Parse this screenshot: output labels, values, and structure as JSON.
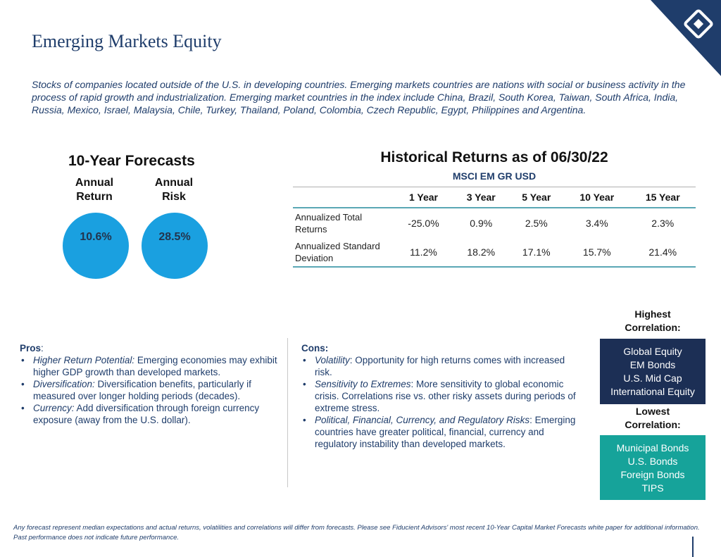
{
  "header": {
    "title": "Emerging Markets Equity",
    "intro": "Stocks of companies located outside of the U.S. in developing countries. Emerging markets countries are nations with social or business activity in the process of rapid growth and industrialization. Emerging market countries in the index include China, Brazil, South Korea, Taiwan, South Africa, India, Russia, Mexico, Israel, Malaysia, Chile, Turkey, Thailand, Poland, Colombia, Czech Republic, Egypt, Philippines and Argentina."
  },
  "forecasts": {
    "title": "10-Year Forecasts",
    "return_label": [
      "Annual",
      "Return"
    ],
    "risk_label": [
      "Annual",
      "Risk"
    ],
    "return_value": "10.6%",
    "risk_value": "28.5%",
    "circle_color": "#1aa0e0"
  },
  "historical": {
    "title": "Historical Returns as of 06/30/22",
    "subtitle": "MSCI EM GR USD",
    "columns": [
      "1 Year",
      "3 Year",
      "5 Year",
      "10 Year",
      "15 Year"
    ],
    "rows": [
      {
        "label_lines": [
          "Annualized Total",
          "Returns"
        ],
        "values": [
          "-25.0%",
          "0.9%",
          "2.5%",
          "3.4%",
          "2.3%"
        ]
      },
      {
        "label_lines": [
          "Annualized Standard",
          "Deviation"
        ],
        "values": [
          "11.2%",
          "18.2%",
          "17.1%",
          "15.7%",
          "21.4%"
        ]
      }
    ]
  },
  "pros": {
    "heading": "Pros",
    "items": [
      {
        "term": "Higher Return Potential:",
        "text": " Emerging economies may exhibit higher GDP growth than developed markets."
      },
      {
        "term": "Diversification:",
        "text": " Diversification benefits, particularly if measured over longer holding periods (decades)."
      },
      {
        "term": "Currency:",
        "text": " Add diversification through foreign currency exposure (away from the U.S. dollar)."
      }
    ]
  },
  "cons": {
    "heading": "Cons:",
    "items": [
      {
        "term": "Volatility",
        "text": ": Opportunity for high returns comes with increased risk."
      },
      {
        "term": "Sensitivity to Extremes",
        "text": ": More sensitivity to global economic crisis. Correlations rise vs. other risky assets during periods of extreme stress."
      },
      {
        "term": "Political, Financial, Currency, and Regulatory Risks",
        "text": ": Emerging countries have greater political, financial, currency and regulatory instability than developed markets."
      }
    ]
  },
  "correlation": {
    "high_label": [
      "Highest",
      "Correlation:"
    ],
    "high_items": [
      "Global Equity",
      "EM Bonds",
      "U.S. Mid Cap",
      "International Equity"
    ],
    "low_label": [
      "Lowest",
      "Correlation:"
    ],
    "low_items": [
      "Municipal Bonds",
      "U.S. Bonds",
      "Foreign Bonds",
      "TIPS"
    ],
    "high_color": "#1c2f55",
    "low_color": "#16a39a"
  },
  "footer": {
    "disclaimer": "Any forecast represent median expectations and actual returns, volatilities and correlations will differ from forecasts.  Please see Fiducient Advisors' most recent 10-Year Capital Market Forecasts white paper for additional information.  Past performance does not indicate future performance."
  },
  "logo": {
    "icon": "brand-logo-icon",
    "color": "#1f3d6b"
  }
}
